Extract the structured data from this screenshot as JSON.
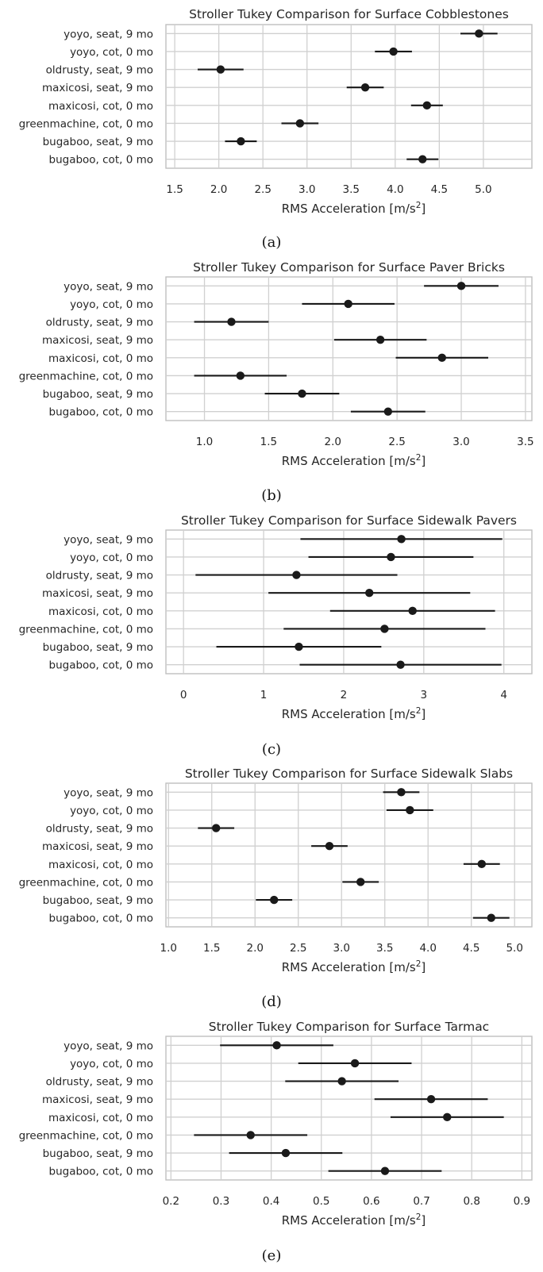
{
  "colors": {
    "marker": "#1a1a1a",
    "grid": "#d0d0d0",
    "frame": "#bfbfbf",
    "background": "#ffffff"
  },
  "chart_data": [
    {
      "type": "errorbar",
      "title": "Stroller Tukey Comparison for Surface Cobblestones",
      "xlabel_main": "RMS Acceleration [m/s",
      "xlabel_sup": "2",
      "xlabel_tail": "]",
      "caption": "(a)",
      "xlim": [
        1.4,
        5.55
      ],
      "xticks": [
        1.5,
        2.0,
        2.5,
        3.0,
        3.5,
        4.0,
        4.5,
        5.0
      ],
      "xtick_labels": [
        "1.5",
        "2.0",
        "2.5",
        "3.0",
        "3.5",
        "4.0",
        "4.5",
        "5.0"
      ],
      "grid": true,
      "rows": [
        {
          "label": "yoyo, seat, 9 mo",
          "mean": 4.95,
          "low": 4.74,
          "high": 5.16
        },
        {
          "label": "yoyo, cot, 0 mo",
          "mean": 3.98,
          "low": 3.77,
          "high": 4.19
        },
        {
          "label": "oldrusty, seat, 9 mo",
          "mean": 2.02,
          "low": 1.76,
          "high": 2.28
        },
        {
          "label": "maxicosi, seat, 9 mo",
          "mean": 3.66,
          "low": 3.45,
          "high": 3.87
        },
        {
          "label": "maxicosi, cot, 0 mo",
          "mean": 4.36,
          "low": 4.18,
          "high": 4.54
        },
        {
          "label": "greenmachine, cot, 0 mo",
          "mean": 2.92,
          "low": 2.71,
          "high": 3.13
        },
        {
          "label": "bugaboo, seat, 9 mo",
          "mean": 2.25,
          "low": 2.07,
          "high": 2.43
        },
        {
          "label": "bugaboo, cot, 0 mo",
          "mean": 4.31,
          "low": 4.13,
          "high": 4.49
        }
      ]
    },
    {
      "type": "errorbar",
      "title": "Stroller Tukey Comparison for Surface Paver Bricks",
      "xlabel_main": "RMS Acceleration [m/s",
      "xlabel_sup": "2",
      "xlabel_tail": "]",
      "caption": "(b)",
      "xlim": [
        0.7,
        3.55
      ],
      "xticks": [
        1.0,
        1.5,
        2.0,
        2.5,
        3.0,
        3.5
      ],
      "xtick_labels": [
        "1.0",
        "1.5",
        "2.0",
        "2.5",
        "3.0",
        "3.5"
      ],
      "grid": true,
      "rows": [
        {
          "label": "yoyo, seat, 9 mo",
          "mean": 3.0,
          "low": 2.71,
          "high": 3.29
        },
        {
          "label": "yoyo, cot, 0 mo",
          "mean": 2.12,
          "low": 1.76,
          "high": 2.48
        },
        {
          "label": "oldrusty, seat, 9 mo",
          "mean": 1.21,
          "low": 0.92,
          "high": 1.5
        },
        {
          "label": "maxicosi, seat, 9 mo",
          "mean": 2.37,
          "low": 2.01,
          "high": 2.73
        },
        {
          "label": "maxicosi, cot, 0 mo",
          "mean": 2.85,
          "low": 2.49,
          "high": 3.21
        },
        {
          "label": "greenmachine, cot, 0 mo",
          "mean": 1.28,
          "low": 0.92,
          "high": 1.64
        },
        {
          "label": "bugaboo, seat, 9 mo",
          "mean": 1.76,
          "low": 1.47,
          "high": 2.05
        },
        {
          "label": "bugaboo, cot, 0 mo",
          "mean": 2.43,
          "low": 2.14,
          "high": 2.72
        }
      ]
    },
    {
      "type": "errorbar",
      "title": "Stroller Tukey Comparison for Surface Sidewalk Pavers",
      "xlabel_main": "RMS Acceleration [m/s",
      "xlabel_sup": "2",
      "xlabel_tail": "]",
      "caption": "(c)",
      "xlim": [
        -0.22,
        4.35
      ],
      "xticks": [
        0,
        1,
        2,
        3,
        4
      ],
      "xtick_labels": [
        "0",
        "1",
        "2",
        "3",
        "4"
      ],
      "grid": true,
      "rows": [
        {
          "label": "yoyo, seat, 9 mo",
          "mean": 2.72,
          "low": 1.46,
          "high": 3.98
        },
        {
          "label": "yoyo, cot, 0 mo",
          "mean": 2.59,
          "low": 1.56,
          "high": 3.62
        },
        {
          "label": "oldrusty, seat, 9 mo",
          "mean": 1.41,
          "low": 0.15,
          "high": 2.67
        },
        {
          "label": "maxicosi, seat, 9 mo",
          "mean": 2.32,
          "low": 1.06,
          "high": 3.58
        },
        {
          "label": "maxicosi, cot, 0 mo",
          "mean": 2.86,
          "low": 1.83,
          "high": 3.89
        },
        {
          "label": "greenmachine, cot, 0 mo",
          "mean": 2.51,
          "low": 1.25,
          "high": 3.77
        },
        {
          "label": "bugaboo, seat, 9 mo",
          "mean": 1.44,
          "low": 0.41,
          "high": 2.47
        },
        {
          "label": "bugaboo, cot, 0 mo",
          "mean": 2.71,
          "low": 1.45,
          "high": 3.97
        }
      ]
    },
    {
      "type": "errorbar",
      "title": "Stroller Tukey Comparison for Surface Sidewalk Slabs",
      "xlabel_main": "RMS Acceleration [m/s",
      "xlabel_sup": "2",
      "xlabel_tail": "]",
      "caption": "(d)",
      "xlim": [
        0.97,
        5.2
      ],
      "xticks": [
        1.0,
        1.5,
        2.0,
        2.5,
        3.0,
        3.5,
        4.0,
        4.5,
        5.0
      ],
      "xtick_labels": [
        "1.0",
        "1.5",
        "2.0",
        "2.5",
        "3.0",
        "3.5",
        "4.0",
        "4.5",
        "5.0"
      ],
      "grid": true,
      "rows": [
        {
          "label": "yoyo, seat, 9 mo",
          "mean": 3.69,
          "low": 3.48,
          "high": 3.9
        },
        {
          "label": "yoyo, cot, 0 mo",
          "mean": 3.79,
          "low": 3.52,
          "high": 4.06
        },
        {
          "label": "oldrusty, seat, 9 mo",
          "mean": 1.55,
          "low": 1.34,
          "high": 1.76
        },
        {
          "label": "maxicosi, seat, 9 mo",
          "mean": 2.86,
          "low": 2.65,
          "high": 3.07
        },
        {
          "label": "maxicosi, cot, 0 mo",
          "mean": 4.62,
          "low": 4.41,
          "high": 4.83
        },
        {
          "label": "greenmachine, cot, 0 mo",
          "mean": 3.22,
          "low": 3.01,
          "high": 3.43
        },
        {
          "label": "bugaboo, seat, 9 mo",
          "mean": 2.22,
          "low": 2.01,
          "high": 2.43
        },
        {
          "label": "bugaboo, cot, 0 mo",
          "mean": 4.73,
          "low": 4.52,
          "high": 4.94
        }
      ]
    },
    {
      "type": "errorbar",
      "title": "Stroller Tukey Comparison for Surface Tarmac",
      "xlabel_main": "RMS Acceleration [m/s",
      "xlabel_sup": "2",
      "xlabel_tail": "]",
      "caption": "(e)",
      "xlim": [
        0.19,
        0.92
      ],
      "xticks": [
        0.2,
        0.3,
        0.4,
        0.5,
        0.6,
        0.7,
        0.8,
        0.9
      ],
      "xtick_labels": [
        "0.2",
        "0.3",
        "0.4",
        "0.5",
        "0.6",
        "0.7",
        "0.8",
        "0.9"
      ],
      "grid": true,
      "rows": [
        {
          "label": "yoyo, seat, 9 mo",
          "mean": 0.411,
          "low": 0.298,
          "high": 0.524
        },
        {
          "label": "yoyo, cot, 0 mo",
          "mean": 0.567,
          "low": 0.454,
          "high": 0.68
        },
        {
          "label": "oldrusty, seat, 9 mo",
          "mean": 0.541,
          "low": 0.428,
          "high": 0.654
        },
        {
          "label": "maxicosi, seat, 9 mo",
          "mean": 0.719,
          "low": 0.606,
          "high": 0.832
        },
        {
          "label": "maxicosi, cot, 0 mo",
          "mean": 0.751,
          "low": 0.638,
          "high": 0.864
        },
        {
          "label": "greenmachine, cot, 0 mo",
          "mean": 0.359,
          "low": 0.246,
          "high": 0.472
        },
        {
          "label": "bugaboo, seat, 9 mo",
          "mean": 0.429,
          "low": 0.316,
          "high": 0.542
        },
        {
          "label": "bugaboo, cot, 0 mo",
          "mean": 0.627,
          "low": 0.514,
          "high": 0.74
        }
      ]
    }
  ]
}
